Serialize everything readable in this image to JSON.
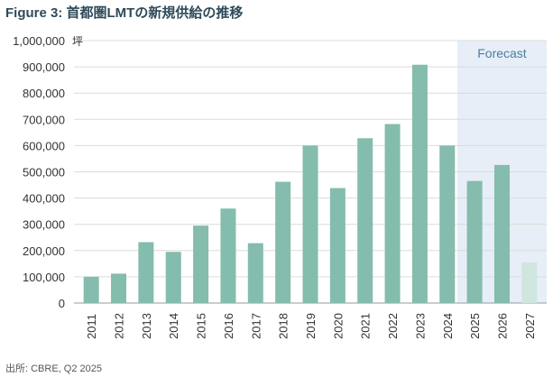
{
  "chart_data": {
    "type": "bar",
    "title": "Figure 3: 首都圏LMTの新規供給の推移",
    "unit_label": "坪",
    "categories": [
      "2011",
      "2012",
      "2013",
      "2014",
      "2015",
      "2016",
      "2017",
      "2018",
      "2019",
      "2020",
      "2021",
      "2022",
      "2023",
      "2024",
      "2025",
      "2026",
      "2027"
    ],
    "values": [
      100000,
      112000,
      232000,
      195000,
      295000,
      360000,
      228000,
      462000,
      600000,
      438000,
      628000,
      682000,
      908000,
      600000,
      465000,
      526000,
      155000
    ],
    "ylim": [
      0,
      1000000
    ],
    "yticks": [
      0,
      100000,
      200000,
      300000,
      400000,
      500000,
      600000,
      700000,
      800000,
      900000,
      1000000
    ],
    "ytick_labels": [
      "0",
      "100,000",
      "200,000",
      "300,000",
      "400,000",
      "500,000",
      "600,000",
      "700,000",
      "800,000",
      "900,000",
      "1,000,000"
    ],
    "forecast_label": "Forecast",
    "forecast_from": "2025",
    "source": "出所: CBRE, Q2 2025",
    "grid": true,
    "colors": {
      "bar": "#84bcad",
      "bar_light": "#cfe6df",
      "forecast_bg": "#e7eef7",
      "forecast_text": "#4a7fa0",
      "grid": "#dcdcdc"
    }
  }
}
